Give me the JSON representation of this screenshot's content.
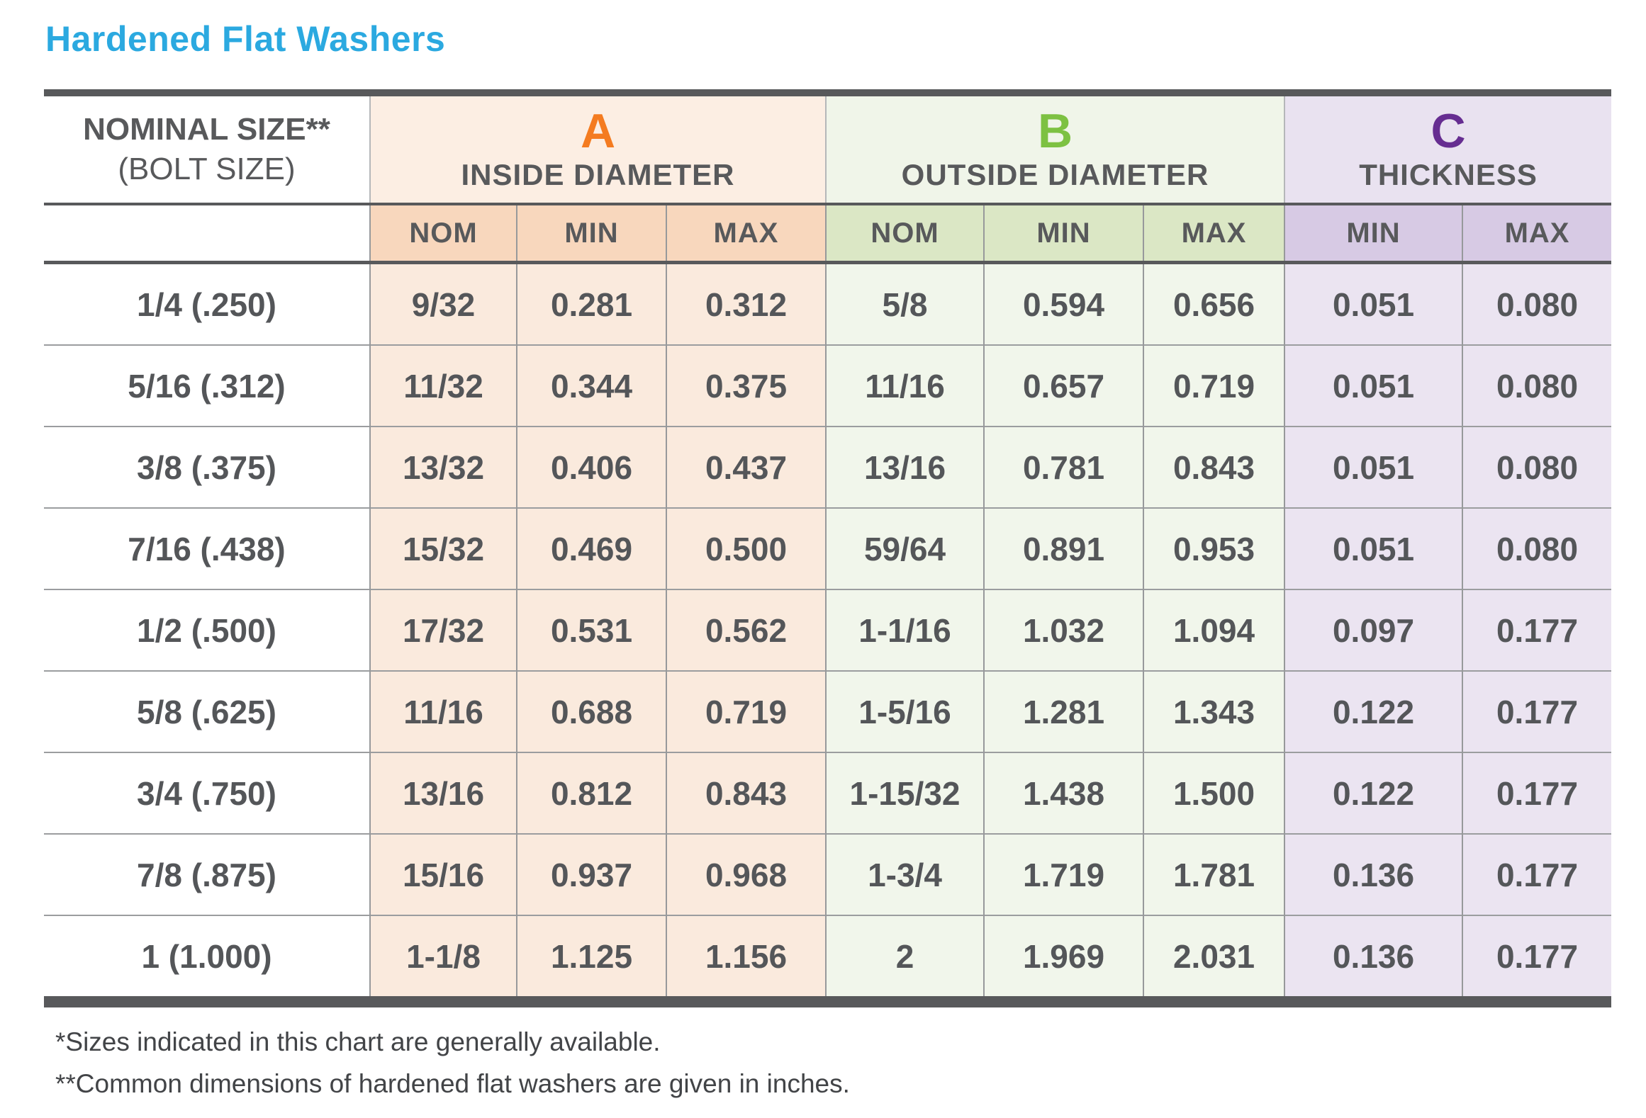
{
  "title": "Hardened Flat Washers",
  "colors": {
    "title_blue": "#2BA9E0",
    "section_a_orange": "#F47B20",
    "section_b_green": "#7DC142",
    "section_c_purple": "#662D91",
    "dark_text": "#58595B",
    "section_a_bg": "#FAEADD",
    "section_b_bg": "#F1F6EB",
    "section_c_bg": "#EBE4F1"
  },
  "chart_data": {
    "type": "table",
    "title": "Hardened Flat Washers",
    "row_header": {
      "line1": "NOMINAL SIZE**",
      "line2": "(BOLT SIZE)"
    },
    "column_groups": [
      {
        "label": "A",
        "title": "INSIDE DIAMETER",
        "columns": [
          "NOM",
          "MIN",
          "MAX"
        ]
      },
      {
        "label": "B",
        "title": "OUTSIDE DIAMETER",
        "columns": [
          "NOM",
          "MIN",
          "MAX"
        ]
      },
      {
        "label": "C",
        "title": "THICKNESS",
        "columns": [
          "MIN",
          "MAX"
        ]
      }
    ],
    "rows": [
      [
        "1/4 (.250)",
        "9/32",
        "0.281",
        "0.312",
        "5/8",
        "0.594",
        "0.656",
        "0.051",
        "0.080"
      ],
      [
        "5/16 (.312)",
        "11/32",
        "0.344",
        "0.375",
        "11/16",
        "0.657",
        "0.719",
        "0.051",
        "0.080"
      ],
      [
        "3/8 (.375)",
        "13/32",
        "0.406",
        "0.437",
        "13/16",
        "0.781",
        "0.843",
        "0.051",
        "0.080"
      ],
      [
        "7/16 (.438)",
        "15/32",
        "0.469",
        "0.500",
        "59/64",
        "0.891",
        "0.953",
        "0.051",
        "0.080"
      ],
      [
        "1/2 (.500)",
        "17/32",
        "0.531",
        "0.562",
        "1-1/16",
        "1.032",
        "1.094",
        "0.097",
        "0.177"
      ],
      [
        "5/8 (.625)",
        "11/16",
        "0.688",
        "0.719",
        "1-5/16",
        "1.281",
        "1.343",
        "0.122",
        "0.177"
      ],
      [
        "3/4 (.750)",
        "13/16",
        "0.812",
        "0.843",
        "1-15/32",
        "1.438",
        "1.500",
        "0.122",
        "0.177"
      ],
      [
        "7/8 (.875)",
        "15/16",
        "0.937",
        "0.968",
        "1-3/4",
        "1.719",
        "1.781",
        "0.136",
        "0.177"
      ],
      [
        "1 (1.000)",
        "1-1/8",
        "1.125",
        "1.156",
        "2",
        "1.969",
        "2.031",
        "0.136",
        "0.177"
      ]
    ]
  },
  "footnotes": [
    "*Sizes indicated in this chart are generally available.",
    "**Common dimensions of hardened flat washers are given in inches."
  ]
}
